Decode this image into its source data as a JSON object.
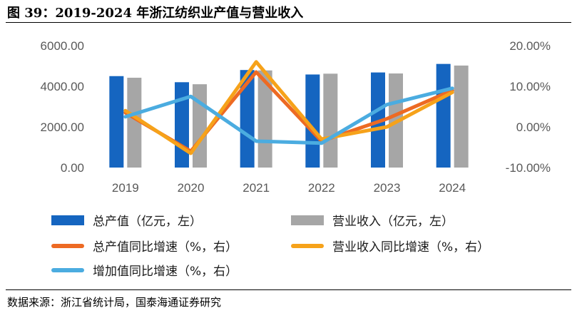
{
  "title": "图 39：2019-2024 年浙江纺织业产值与营业收入",
  "source": "数据来源：浙江省统计局，国泰海通证券研究",
  "chart_data": {
    "type": "bar+line",
    "categories": [
      "2019",
      "2020",
      "2021",
      "2022",
      "2023",
      "2024"
    ],
    "left_axis": {
      "ylim": [
        0,
        6000
      ],
      "ticks": [
        "0.00",
        "2000.00",
        "4000.00",
        "6000.00"
      ]
    },
    "right_axis": {
      "ylim": [
        -10,
        20
      ],
      "ticks": [
        "-10.00%",
        "0.00%",
        "10.00%",
        "20.00%"
      ]
    },
    "bars": [
      {
        "name": "总产值（亿元，左）",
        "color": "#1565C0",
        "values": [
          4500,
          4200,
          4800,
          4580,
          4680,
          5100
        ]
      },
      {
        "name": "营业收入（亿元，左）",
        "color": "#A6A6A6",
        "values": [
          4420,
          4100,
          4780,
          4620,
          4630,
          5020
        ]
      }
    ],
    "lines": [
      {
        "name": "总产值同比增速（%，右）",
        "color": "#ED6A23",
        "values": [
          3.5,
          -6.0,
          13.5,
          -3.5,
          2.0,
          9.0
        ]
      },
      {
        "name": "营业收入同比增速（%，右）",
        "color": "#F6A21A",
        "values": [
          4.0,
          -6.5,
          16.0,
          -3.0,
          0.0,
          8.5
        ]
      },
      {
        "name": "增加值同比增速（%，右）",
        "color": "#4BACE0",
        "values": [
          2.5,
          7.5,
          -3.5,
          -4.0,
          5.5,
          9.5
        ]
      }
    ]
  }
}
